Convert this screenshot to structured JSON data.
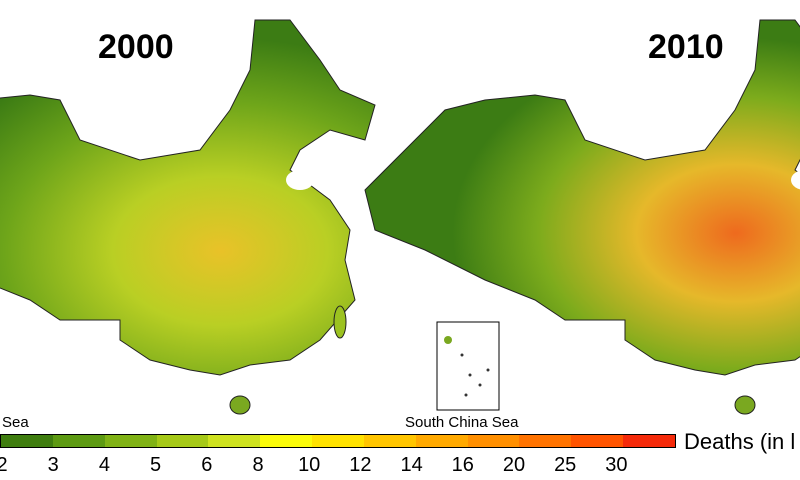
{
  "maps": [
    {
      "title": "2000"
    },
    {
      "title": "2010"
    }
  ],
  "inset_label": "South China Sea",
  "inset_label_partial": "Sea",
  "legend": {
    "title": "Deaths (in l",
    "ticks": [
      "2",
      "3",
      "4",
      "5",
      "6",
      "8",
      "10",
      "12",
      "14",
      "16",
      "20",
      "25",
      "30"
    ],
    "colors": [
      "#3f7d0f",
      "#5d9a12",
      "#80b215",
      "#a6c918",
      "#cfe21f",
      "#fbfb0a",
      "#ffe200",
      "#ffc500",
      "#ffa900",
      "#ff8f00",
      "#ff7300",
      "#ff5400",
      "#f52a0a"
    ]
  }
}
